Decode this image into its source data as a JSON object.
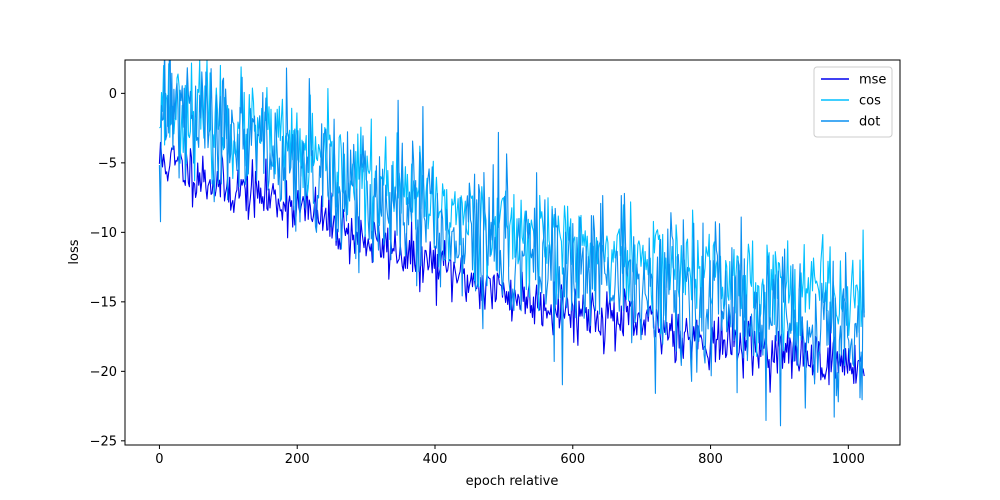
{
  "chart_data": {
    "type": "line",
    "title": "",
    "xlabel": "epoch relative",
    "ylabel": "loss",
    "xlim": [
      -50,
      1075
    ],
    "ylim": [
      -25.3,
      2.4
    ],
    "xticks": [
      0,
      200,
      400,
      600,
      800,
      1000
    ],
    "yticks": [
      0,
      -5,
      -10,
      -15,
      -20,
      -25
    ],
    "legend_position": "top-right",
    "grid": false,
    "series": [
      {
        "name": "mse",
        "color": "#0000ee",
        "x": [
          0,
          25,
          50,
          75,
          100,
          125,
          150,
          175,
          200,
          225,
          250,
          275,
          300,
          325,
          350,
          375,
          400,
          425,
          450,
          475,
          500,
          525,
          550,
          575,
          600,
          625,
          650,
          675,
          700,
          725,
          750,
          775,
          800,
          825,
          850,
          875,
          900,
          925,
          950,
          975,
          1000,
          1023
        ],
        "y": [
          -4.8,
          -5.1,
          -5.7,
          -6.3,
          -6.9,
          -7.0,
          -7.4,
          -7.7,
          -8.2,
          -8.7,
          -9.4,
          -10.0,
          -10.6,
          -11.0,
          -11.4,
          -11.9,
          -12.4,
          -12.9,
          -13.4,
          -13.9,
          -14.4,
          -14.7,
          -15.0,
          -15.3,
          -15.6,
          -15.8,
          -16.1,
          -16.4,
          -16.6,
          -16.9,
          -17.2,
          -17.5,
          -17.7,
          -17.9,
          -18.1,
          -18.4,
          -18.6,
          -18.8,
          -19.0,
          -19.2,
          -19.4,
          -19.5
        ],
        "noise": 1.0,
        "seed": 11
      },
      {
        "name": "cos",
        "color": "#00bfff",
        "x": [
          0,
          25,
          50,
          75,
          100,
          125,
          150,
          175,
          200,
          225,
          250,
          275,
          300,
          325,
          350,
          375,
          400,
          425,
          450,
          475,
          500,
          525,
          550,
          575,
          600,
          625,
          650,
          675,
          700,
          725,
          750,
          775,
          800,
          825,
          850,
          875,
          900,
          925,
          950,
          975,
          1000,
          1023
        ],
        "y": [
          -0.5,
          -1.0,
          -1.4,
          -1.9,
          -2.3,
          -2.7,
          -3.2,
          -3.7,
          -4.2,
          -4.8,
          -5.3,
          -5.8,
          -6.3,
          -6.8,
          -7.3,
          -7.7,
          -8.1,
          -8.5,
          -8.9,
          -9.3,
          -9.7,
          -10.0,
          -10.3,
          -10.6,
          -10.9,
          -11.2,
          -11.5,
          -11.8,
          -12.0,
          -12.3,
          -12.6,
          -12.8,
          -13.1,
          -13.3,
          -13.5,
          -13.7,
          -13.9,
          -14.1,
          -14.3,
          -14.5,
          -14.7,
          -14.8
        ],
        "noise": 1.8,
        "seed": 23
      },
      {
        "name": "dot",
        "color": "#0a8ff0",
        "x": [
          0,
          25,
          50,
          75,
          100,
          125,
          150,
          175,
          200,
          225,
          250,
          275,
          300,
          325,
          350,
          375,
          400,
          425,
          450,
          475,
          500,
          525,
          550,
          575,
          600,
          625,
          650,
          675,
          700,
          725,
          750,
          775,
          800,
          825,
          850,
          875,
          900,
          925,
          950,
          975,
          1000,
          1023
        ],
        "y": [
          -1.0,
          -1.6,
          -2.1,
          -2.6,
          -3.1,
          -3.6,
          -4.1,
          -4.6,
          -5.1,
          -5.6,
          -6.2,
          -6.7,
          -7.2,
          -7.7,
          -8.2,
          -8.7,
          -9.2,
          -9.7,
          -10.2,
          -10.6,
          -11.0,
          -11.4,
          -11.8,
          -12.2,
          -12.6,
          -13.0,
          -13.4,
          -13.8,
          -14.1,
          -14.4,
          -14.8,
          -15.1,
          -15.4,
          -15.7,
          -16.0,
          -16.3,
          -16.6,
          -16.9,
          -17.1,
          -17.3,
          -17.5,
          -17.6
        ],
        "noise": 2.6,
        "seed": 47
      }
    ]
  }
}
